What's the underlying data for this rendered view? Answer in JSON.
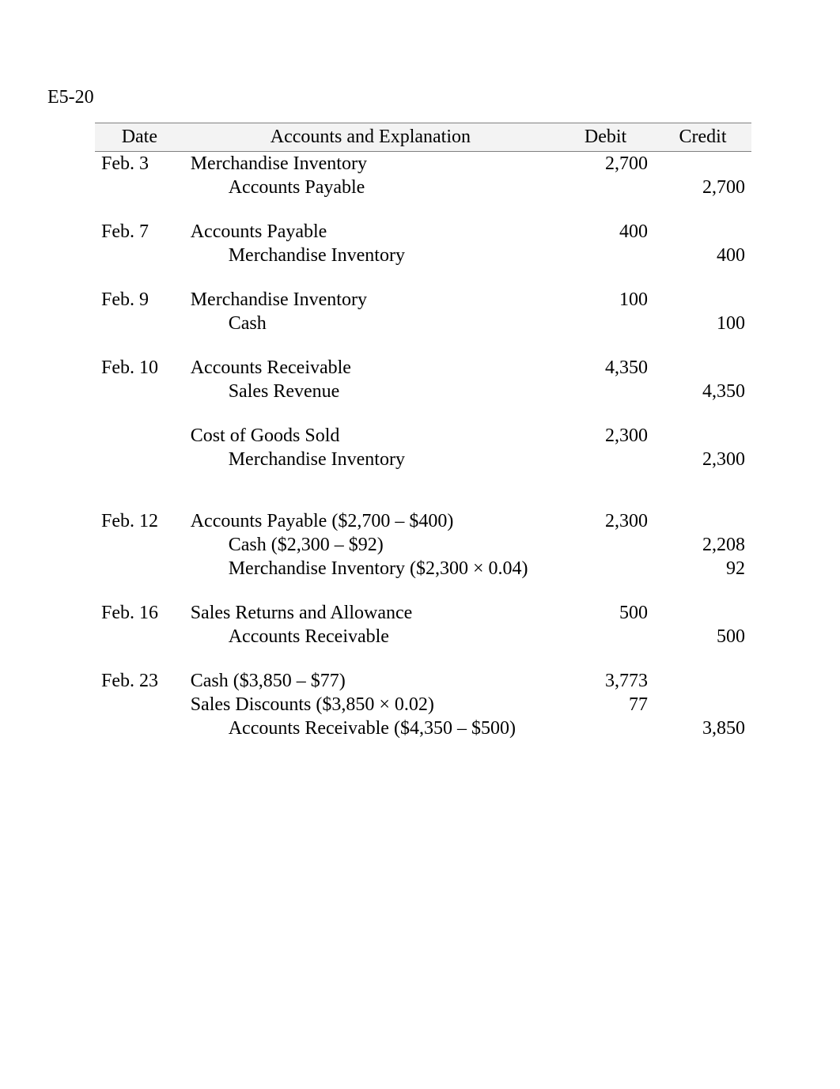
{
  "heading": "E5-20",
  "columns": {
    "date": "Date",
    "accounts": "Accounts and Explanation",
    "debit": "Debit",
    "credit": "Credit"
  },
  "rows": [
    {
      "date": "Feb. 3",
      "account": "Merchandise Inventory",
      "indent": false,
      "debit": "2,700",
      "credit": ""
    },
    {
      "date": "",
      "account": "Accounts Payable",
      "indent": true,
      "debit": "",
      "credit": "2,700"
    },
    {
      "type": "spacer"
    },
    {
      "date": "Feb. 7",
      "account": "Accounts Payable",
      "indent": false,
      "debit": "400",
      "credit": ""
    },
    {
      "date": "",
      "account": "Merchandise Inventory",
      "indent": true,
      "debit": "",
      "credit": "400"
    },
    {
      "type": "spacer"
    },
    {
      "date": "Feb. 9",
      "account": "Merchandise Inventory",
      "indent": false,
      "debit": "100",
      "credit": ""
    },
    {
      "date": "",
      "account": "Cash",
      "indent": true,
      "debit": "",
      "credit": "100"
    },
    {
      "type": "spacer"
    },
    {
      "date": "Feb. 10",
      "account": "Accounts Receivable",
      "indent": false,
      "debit": "4,350",
      "credit": ""
    },
    {
      "date": "",
      "account": "Sales Revenue",
      "indent": true,
      "debit": "",
      "credit": "4,350"
    },
    {
      "type": "spacer"
    },
    {
      "date": "",
      "account": "Cost of Goods Sold",
      "indent": false,
      "debit": "2,300",
      "credit": ""
    },
    {
      "date": "",
      "account": "Merchandise Inventory",
      "indent": true,
      "debit": "",
      "credit": "2,300"
    },
    {
      "type": "spacer-lg"
    },
    {
      "date": "Feb. 12",
      "account": "Accounts Payable ($2,700 – $400)",
      "indent": false,
      "debit": "2,300",
      "credit": ""
    },
    {
      "date": "",
      "account": "Cash ($2,300 – $92)",
      "indent": true,
      "debit": "",
      "credit": "2,208"
    },
    {
      "date": "",
      "account": "Merchandise Inventory ($2,300 × 0.04)",
      "indent": true,
      "debit": "",
      "credit": "92"
    },
    {
      "type": "spacer"
    },
    {
      "date": "Feb. 16",
      "account": "Sales Returns and Allowance",
      "indent": false,
      "debit": "500",
      "credit": ""
    },
    {
      "date": "",
      "account": "Accounts Receivable",
      "indent": true,
      "debit": "",
      "credit": "500"
    },
    {
      "type": "spacer"
    },
    {
      "date": "Feb. 23",
      "account": "Cash ($3,850 – $77)",
      "indent": false,
      "debit": "3,773",
      "credit": ""
    },
    {
      "date": "",
      "account": "Sales Discounts ($3,850 × 0.02)",
      "indent": false,
      "debit": "77",
      "credit": ""
    },
    {
      "date": "",
      "account": "Accounts Receivable ($4,350 – $500)",
      "indent": true,
      "debit": "",
      "credit": "3,850"
    },
    {
      "type": "spacer"
    }
  ]
}
